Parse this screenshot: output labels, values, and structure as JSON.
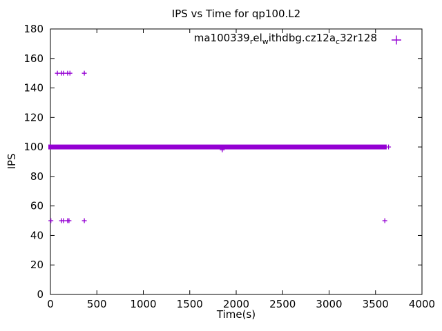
{
  "window": {
    "background": "#ffffff"
  },
  "colors": {
    "series": "#9400D3",
    "axis": "#000000",
    "text": "#000000",
    "background": "#ffffff"
  },
  "legend": {
    "marker_glyph": "+",
    "position": "top-right-inside"
  },
  "chart_data": {
    "type": "scatter",
    "title": "IPS vs Time for qp100.L2",
    "xlabel": "Time(s)",
    "ylabel": "IPS",
    "xlim": [
      0,
      4000
    ],
    "ylim": [
      0,
      180
    ],
    "xticks": [
      0,
      500,
      1000,
      1500,
      2000,
      2500,
      3000,
      3500,
      4000
    ],
    "yticks": [
      0,
      20,
      40,
      60,
      80,
      100,
      120,
      140,
      160,
      180
    ],
    "grid": false,
    "tick_style": "inward-mirrored",
    "legend_position": "top-right-inside",
    "series": [
      {
        "name": "ma100339_rel_withdbg.cz12a_c32r128",
        "name_display_parts": [
          {
            "text": "ma100339"
          },
          {
            "text": "r",
            "sub": true
          },
          {
            "text": "el"
          },
          {
            "text": "w",
            "sub": true
          },
          {
            "text": "ithdbg.cz12a"
          },
          {
            "text": "c",
            "sub": true
          },
          {
            "text": "32r128"
          }
        ],
        "marker": "+",
        "color": "#9400D3",
        "dense_band": {
          "ips": 100,
          "t_start": 0,
          "t_end": 3620,
          "description": "continuous run of overlapping + points at IPS ~100 rendered as a solid bar"
        },
        "points": [
          {
            "t": 75,
            "ips": 150
          },
          {
            "t": 120,
            "ips": 150
          },
          {
            "t": 140,
            "ips": 150
          },
          {
            "t": 185,
            "ips": 150
          },
          {
            "t": 210,
            "ips": 150
          },
          {
            "t": 365,
            "ips": 150
          },
          {
            "t": 5,
            "ips": 50
          },
          {
            "t": 120,
            "ips": 50
          },
          {
            "t": 140,
            "ips": 50
          },
          {
            "t": 185,
            "ips": 50
          },
          {
            "t": 200,
            "ips": 50
          },
          {
            "t": 365,
            "ips": 50
          },
          {
            "t": 3600,
            "ips": 50
          },
          {
            "t": 1850,
            "ips": 98
          },
          {
            "t": 3640,
            "ips": 100
          }
        ]
      }
    ]
  }
}
